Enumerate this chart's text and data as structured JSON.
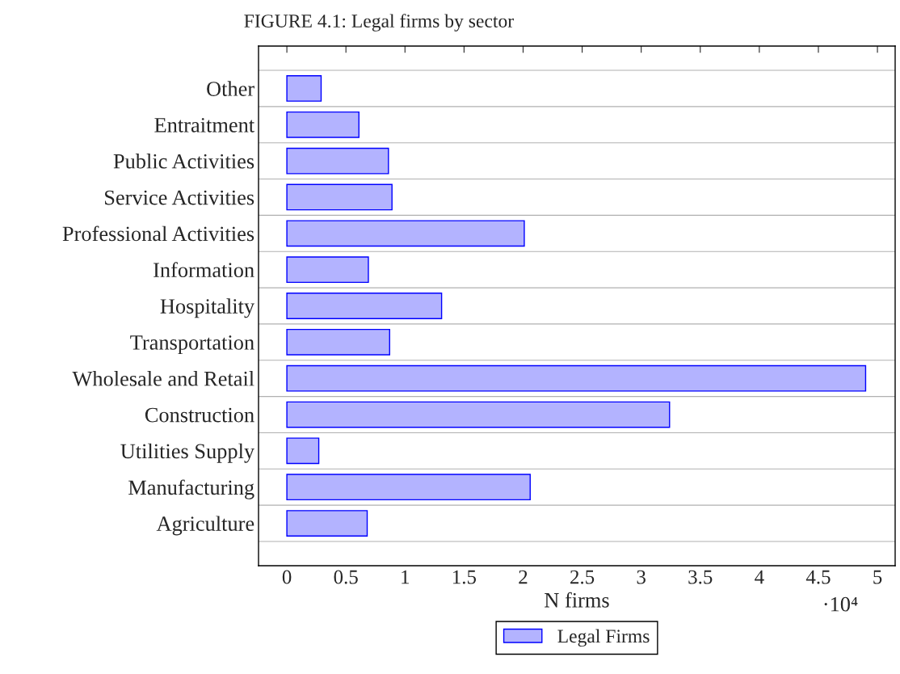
{
  "chart_data": {
    "type": "bar",
    "orientation": "horizontal",
    "title": "FIGURE 4.1: Legal firms by sector",
    "xlabel": "N firms",
    "categories": [
      "Other",
      "Entraitment",
      "Public Activities",
      "Service Activities",
      "Professional Activities",
      "Information",
      "Hospitality",
      "Transportation",
      "Wholesale and Retail",
      "Construction",
      "Utilities Supply",
      "Manufacturing",
      "Agriculture"
    ],
    "series": [
      {
        "name": "Legal Firms",
        "color": "#b3b3ff",
        "values": [
          0.29,
          0.61,
          0.86,
          0.89,
          2.01,
          0.69,
          1.31,
          0.87,
          4.9,
          3.24,
          0.27,
          2.06,
          0.68
        ]
      }
    ],
    "xlim": [
      -0.24,
      5.15
    ],
    "xticks": [
      0,
      0.5,
      1,
      1.5,
      2,
      2.5,
      3,
      3.5,
      4,
      4.5,
      5
    ],
    "annotations": [
      "·10⁴"
    ],
    "grid": "y",
    "legend": "bottom"
  }
}
